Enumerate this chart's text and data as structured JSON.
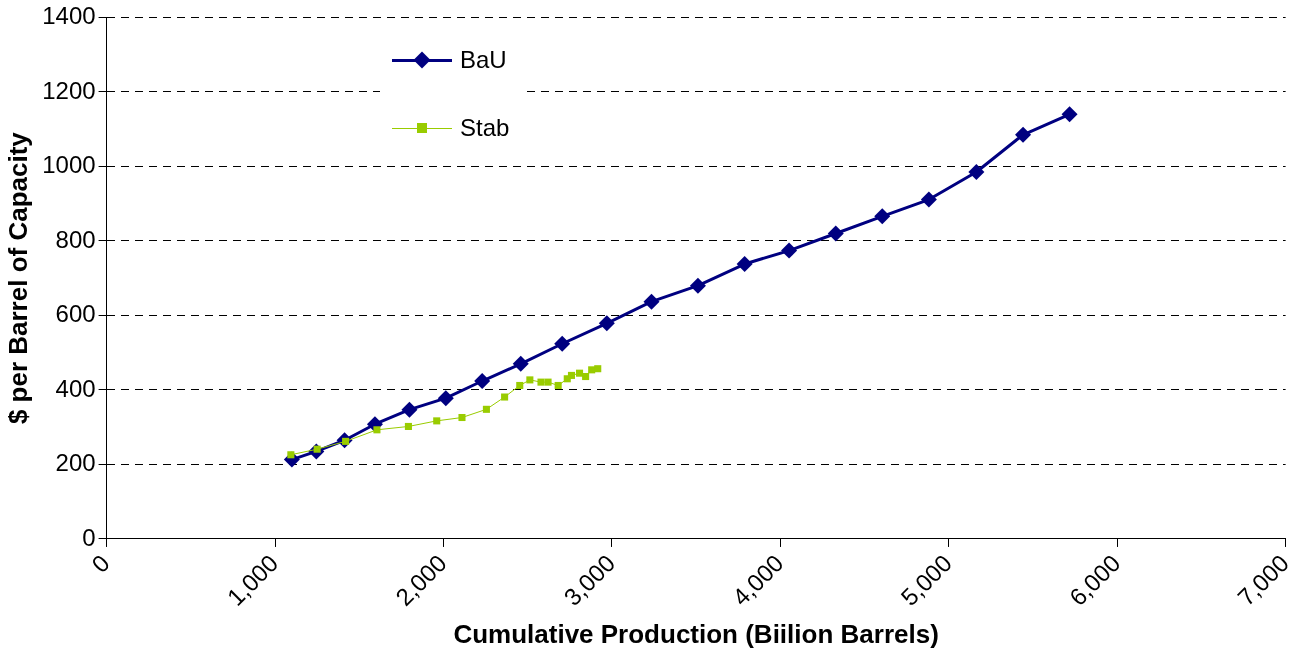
{
  "chart_data": {
    "type": "line",
    "xlabel": "Cumulative Production (Biilion Barrels)",
    "ylabel": "$ per Barrel of Capacity",
    "xlim": [
      0,
      7000
    ],
    "xticks": [
      {
        "value": 0,
        "label": "0"
      },
      {
        "value": 1000,
        "label": "1,000"
      },
      {
        "value": 2000,
        "label": "2,000"
      },
      {
        "value": 3000,
        "label": "3,000"
      },
      {
        "value": 4000,
        "label": "4,000"
      },
      {
        "value": 5000,
        "label": "5,000"
      },
      {
        "value": 6000,
        "label": "6,000"
      },
      {
        "value": 7000,
        "label": "7,000"
      }
    ],
    "ylim": [
      0,
      1400
    ],
    "yticks": [
      0,
      200,
      400,
      600,
      800,
      1000,
      1200,
      1400
    ],
    "grid": "y",
    "legend": "top left",
    "series": [
      {
        "name": "BaU",
        "color": "#000080",
        "marker": "diamond",
        "x": [
          1100,
          1245,
          1413,
          1593,
          1798,
          2014,
          2230,
          2459,
          2705,
          2970,
          3235,
          3511,
          3788,
          4052,
          4329,
          4605,
          4882,
          5164,
          5441,
          5717
        ],
        "values": [
          213,
          235,
          265,
          308,
          347,
          378,
          424,
          470,
          524,
          579,
          637,
          680,
          738,
          774,
          820,
          866,
          911,
          985,
          1085,
          1140
        ]
      },
      {
        "name": "Stab",
        "color": "#99cc00",
        "marker": "square",
        "x": [
          1094,
          1250,
          1419,
          1605,
          1792,
          1960,
          2110,
          2255,
          2363,
          2453,
          2513,
          2579,
          2621,
          2681,
          2735,
          2760,
          2808,
          2844,
          2880,
          2916
        ],
        "values": [
          226,
          241,
          262,
          293,
          302,
          317,
          326,
          348,
          381,
          412,
          427,
          421,
          421,
          412,
          430,
          439,
          445,
          436,
          454,
          457
        ]
      }
    ]
  }
}
